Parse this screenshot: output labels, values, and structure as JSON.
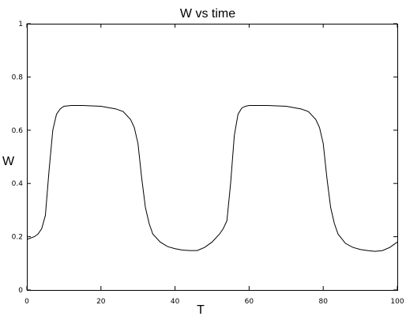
{
  "chart_data": {
    "type": "line",
    "title": "W vs time",
    "xlabel": "T",
    "ylabel": "W",
    "xlim": [
      0,
      100
    ],
    "ylim": [
      0,
      1
    ],
    "x_ticks": [
      0,
      20,
      40,
      60,
      80,
      100
    ],
    "y_ticks": [
      0,
      0.2,
      0.4,
      0.6,
      0.8,
      1
    ],
    "x_tick_labels": [
      "0",
      "20",
      "40",
      "60",
      "80",
      "100"
    ],
    "y_tick_labels": [
      "0",
      "0.2",
      "0.4",
      "0.6",
      "0.8",
      "1"
    ],
    "grid": false,
    "series": [
      {
        "color": "#000000",
        "x": [
          0,
          2,
          3,
          4,
          5,
          6,
          7,
          8,
          9,
          10,
          12,
          15,
          20,
          24,
          26,
          28,
          29,
          30,
          31,
          32,
          33,
          34,
          36,
          38,
          40,
          42,
          44,
          46,
          48,
          50,
          52,
          53,
          54,
          55,
          56,
          57,
          58,
          59,
          60,
          62,
          65,
          70,
          74,
          76,
          78,
          79,
          80,
          81,
          82,
          83,
          84,
          86,
          88,
          90,
          92,
          94,
          96,
          98,
          100
        ],
        "y": [
          0.19,
          0.2,
          0.21,
          0.23,
          0.28,
          0.45,
          0.6,
          0.66,
          0.68,
          0.69,
          0.693,
          0.693,
          0.69,
          0.68,
          0.67,
          0.64,
          0.61,
          0.55,
          0.42,
          0.31,
          0.25,
          0.21,
          0.18,
          0.163,
          0.155,
          0.15,
          0.148,
          0.148,
          0.16,
          0.18,
          0.21,
          0.23,
          0.26,
          0.4,
          0.58,
          0.66,
          0.683,
          0.69,
          0.693,
          0.693,
          0.693,
          0.69,
          0.68,
          0.67,
          0.64,
          0.61,
          0.55,
          0.42,
          0.31,
          0.25,
          0.21,
          0.175,
          0.16,
          0.152,
          0.148,
          0.145,
          0.148,
          0.16,
          0.18
        ]
      }
    ]
  }
}
